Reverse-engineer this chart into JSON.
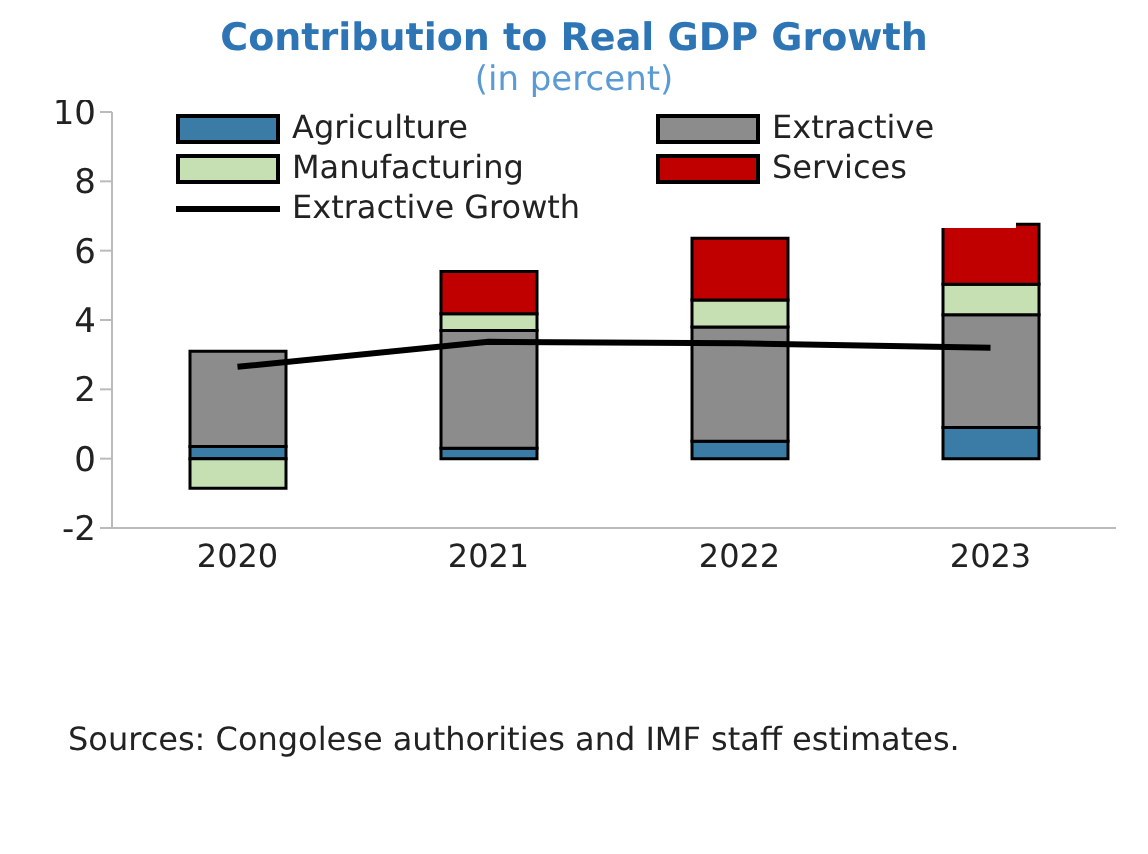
{
  "chart_data": {
    "type": "bar",
    "title": "Contribution to Real GDP Growth",
    "subtitle": "(in percent)",
    "categories": [
      "2020",
      "2021",
      "2022",
      "2023"
    ],
    "stacked": true,
    "series": [
      {
        "name": "Agriculture",
        "color": "#3a7ca5",
        "values": [
          0.35,
          0.3,
          0.5,
          0.9
        ]
      },
      {
        "name": "Extractive",
        "color": "#8c8c8c",
        "values": [
          2.75,
          3.4,
          3.3,
          3.25
        ]
      },
      {
        "name": "Manufacturing",
        "color": "#c6e0b4",
        "values": [
          -0.85,
          0.48,
          0.78,
          0.88
        ]
      },
      {
        "name": "Services",
        "color": "#c00000",
        "values": [
          0,
          1.22,
          1.78,
          1.73
        ]
      },
      {
        "name": "Extractive Growth",
        "type": "line",
        "color": "#000000",
        "values": [
          2.65,
          3.37,
          3.33,
          3.2
        ]
      }
    ],
    "ylim": [
      -2,
      10
    ],
    "yticks": [
      -2,
      0,
      2,
      4,
      6,
      8,
      10
    ],
    "grid": false,
    "legend": "top left",
    "marker": "none",
    "annotations": [
      "Sources: Congolese authorities and IMF staff estimates."
    ]
  }
}
